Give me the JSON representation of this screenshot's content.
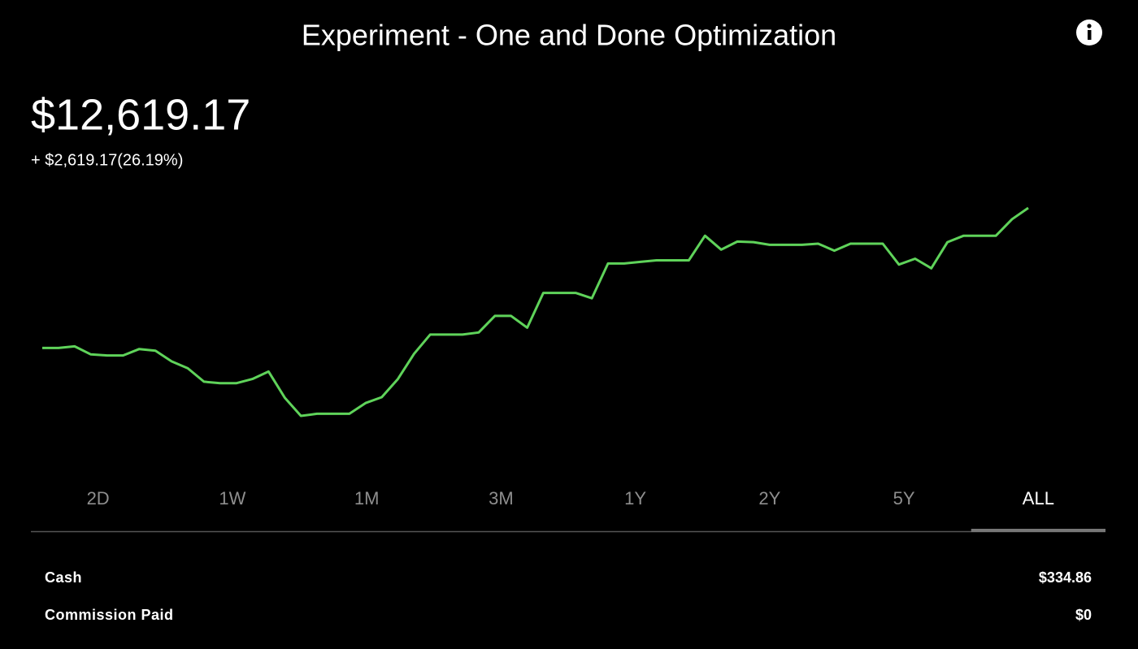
{
  "header": {
    "title": "Experiment - One and Done Optimization"
  },
  "balance": "$12,619.17",
  "change": "+ $2,619.17(26.19%)",
  "chart_data": {
    "type": "line",
    "color": "#5fd35a",
    "values": [
      10000,
      10000,
      10030,
      9880,
      9860,
      9860,
      9980,
      9950,
      9750,
      9620,
      9370,
      9340,
      9340,
      9420,
      9560,
      9070,
      8730,
      8770,
      8770,
      8770,
      8970,
      9080,
      9420,
      9890,
      10250,
      10250,
      10250,
      10290,
      10600,
      10600,
      10380,
      11030,
      11030,
      11030,
      10930,
      11580,
      11580,
      11610,
      11640,
      11640,
      11640,
      12100,
      11840,
      11990,
      11980,
      11930,
      11930,
      11930,
      11950,
      11820,
      11950,
      11950,
      11950,
      11560,
      11670,
      11490,
      11980,
      12100,
      12100,
      12100,
      12410,
      12619.17
    ]
  },
  "tabs": [
    "2D",
    "1W",
    "1M",
    "3M",
    "1Y",
    "2Y",
    "5Y",
    "ALL"
  ],
  "selected_tab": "ALL",
  "stats": [
    {
      "label": "Cash",
      "value": "$334.86"
    },
    {
      "label": "Commission Paid",
      "value": "$0"
    }
  ]
}
